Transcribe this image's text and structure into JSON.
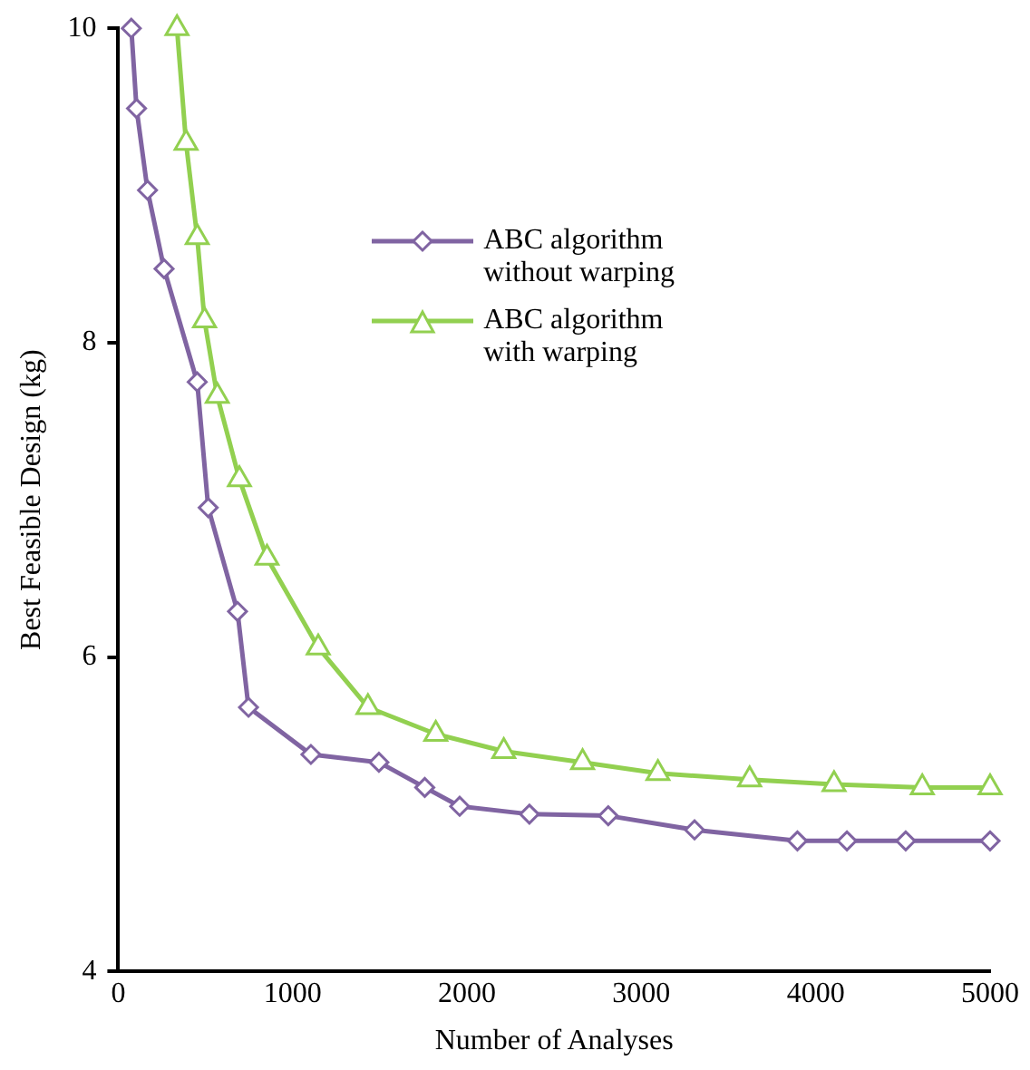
{
  "chart_data": {
    "type": "line",
    "xlabel": "Number of Analyses",
    "ylabel": "Best Feasible Design (kg)",
    "xlim": [
      0,
      5000
    ],
    "xticks": [
      0,
      1000,
      2000,
      3000,
      4000,
      5000
    ],
    "ylim": [
      4,
      10
    ],
    "yticks": [
      4,
      6,
      8,
      10
    ],
    "grid": false,
    "legend": "top right",
    "line_style": "solid",
    "series": [
      {
        "name": "ABC algorithm without warping",
        "color": "#8064a2",
        "marker": "diamond",
        "x": [
          75,
          105,
          168,
          263,
          453,
          516,
          684,
          747,
          1105,
          1495,
          1758,
          1958,
          2358,
          2810,
          3305,
          3895,
          4179,
          4516,
          5000
        ],
        "values": [
          10,
          9.49,
          8.97,
          8.47,
          7.75,
          6.95,
          6.29,
          5.68,
          5.38,
          5.33,
          5.17,
          5.05,
          5.0,
          4.99,
          4.9,
          4.83,
          4.83,
          4.83,
          4.83
        ]
      },
      {
        "name": "ABC algorithm with warping",
        "color": "#92d050",
        "marker": "triangle",
        "x": [
          337,
          389,
          453,
          495,
          568,
          695,
          853,
          1147,
          1432,
          1821,
          2211,
          2663,
          3095,
          3621,
          4105,
          4611,
          5000
        ],
        "values": [
          10,
          9.27,
          8.67,
          8.14,
          7.66,
          7.13,
          6.63,
          6.06,
          5.68,
          5.51,
          5.4,
          5.33,
          5.26,
          5.22,
          5.19,
          5.17,
          5.17
        ]
      }
    ]
  }
}
